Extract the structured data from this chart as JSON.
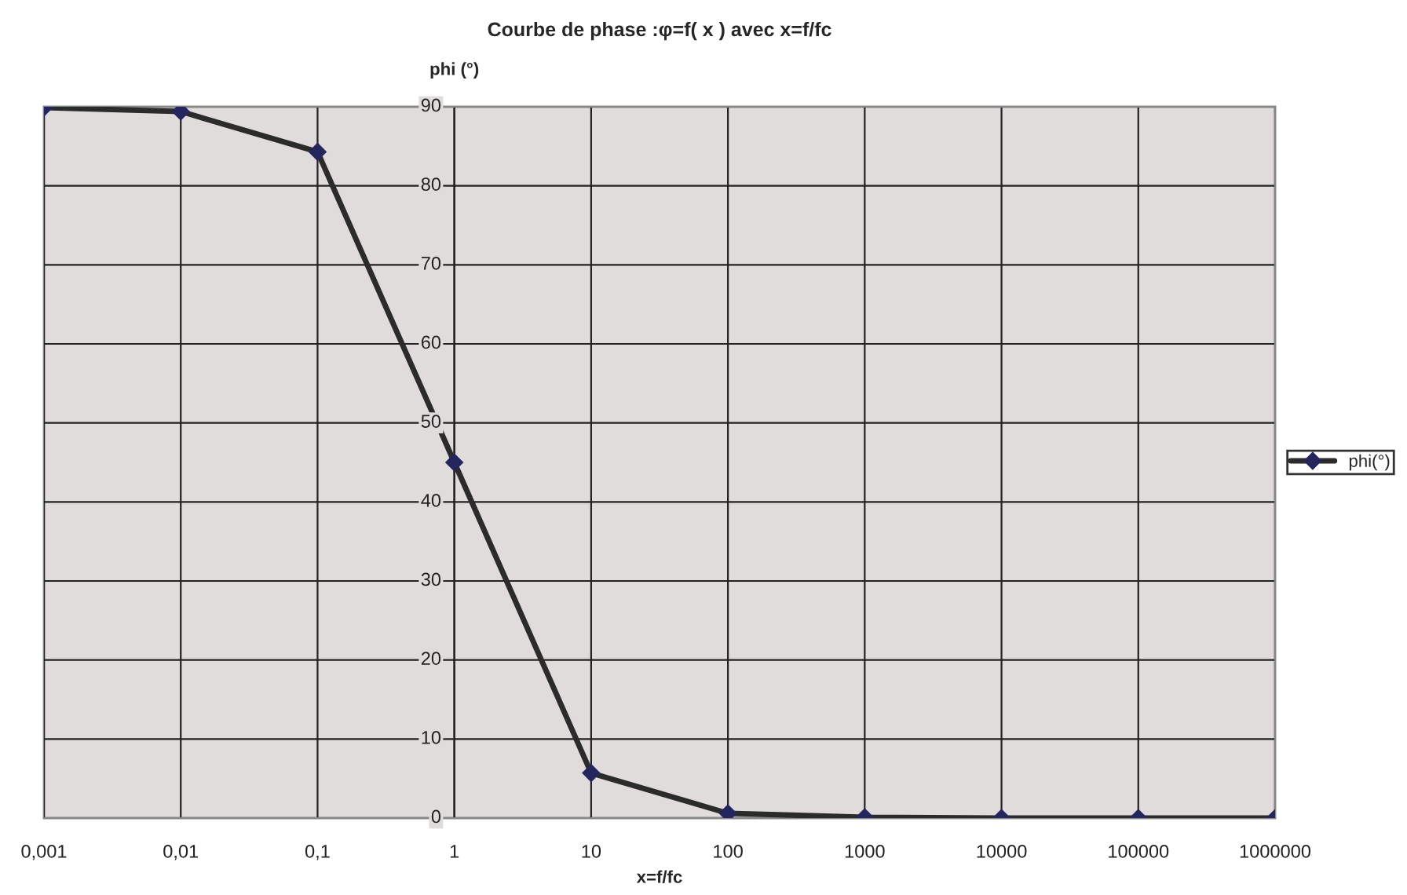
{
  "chart_data": {
    "type": "line",
    "title": "Courbe de phase :φ=f( x ) avec x=f/fc",
    "xlabel": "x=f/fc",
    "ylabel": "phi (°)",
    "categories": [
      "0,001",
      "0,01",
      "0,1",
      "1",
      "10",
      "100",
      "1000",
      "10000",
      "100000",
      "1000000"
    ],
    "series": [
      {
        "name": "phi(°)",
        "color": "#2b2b2b",
        "values": [
          89.9,
          89.4,
          84.3,
          45,
          5.7,
          0.6,
          0.1,
          0,
          0,
          0
        ]
      }
    ],
    "ylim": [
      0,
      90
    ],
    "yticks": [
      0,
      10,
      20,
      30,
      40,
      50,
      60,
      70,
      80,
      90
    ],
    "grid": true,
    "legend": "right",
    "marker": "diamond",
    "line_style": "solid"
  }
}
